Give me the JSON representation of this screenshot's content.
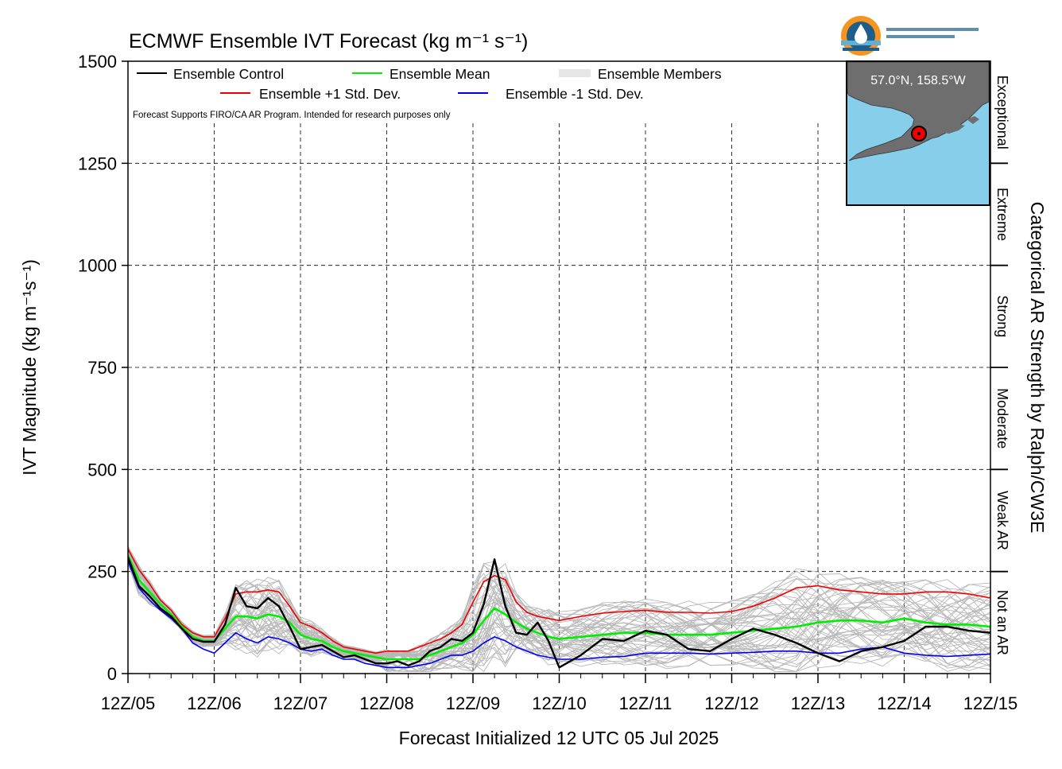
{
  "chart_data": {
    "type": "line",
    "title": "ECMWF Ensemble IVT Forecast (kg m⁻¹ s⁻¹)",
    "xlabel": "Forecast Initialized 12 UTC 05 Jul 2025",
    "ylabel": "IVT Magnitude (kg m⁻¹s⁻¹)",
    "y2label": "Categorical AR Strength by Ralph/CW3E",
    "ylim": [
      0,
      1500
    ],
    "xlim": [
      0,
      240
    ],
    "yticks": [
      0,
      250,
      500,
      750,
      1000,
      1250,
      1500
    ],
    "ytick_labels": [
      "0",
      "250",
      "500",
      "750",
      "1000",
      "1250",
      "1500"
    ],
    "xticks": [
      0,
      24,
      48,
      72,
      96,
      120,
      144,
      168,
      192,
      216,
      240
    ],
    "xtick_labels": [
      "12Z/05",
      "12Z/06",
      "12Z/07",
      "12Z/08",
      "12Z/09",
      "12Z/10",
      "12Z/11",
      "12Z/12",
      "12Z/13",
      "12Z/14",
      "12Z/15"
    ],
    "grid": true,
    "legend": {
      "placement": "top-left",
      "entries": [
        {
          "label": "Ensemble Control",
          "color": "#000000"
        },
        {
          "label": "Ensemble Mean",
          "color": "#00ee00"
        },
        {
          "label": "Ensemble Members",
          "color": "#bbbbbb"
        },
        {
          "label": "Ensemble +1 Std. Dev.",
          "color": "#ee0000"
        },
        {
          "label": "Ensemble -1 Std. Dev.",
          "color": "#0000ee"
        }
      ]
    },
    "disclaimer": "Forecast Supports FIRO/CA AR Program. Intended for research purposes only",
    "categories_right": [
      {
        "label": "Not an AR",
        "range": [
          0,
          250
        ]
      },
      {
        "label": "Weak AR",
        "range": [
          250,
          500
        ]
      },
      {
        "label": "Moderate",
        "range": [
          500,
          750
        ]
      },
      {
        "label": "Strong",
        "range": [
          750,
          1000
        ]
      },
      {
        "label": "Extreme",
        "range": [
          1000,
          1250
        ]
      },
      {
        "label": "Exceptional",
        "range": [
          1250,
          1500
        ]
      }
    ],
    "inset": {
      "location_label": "57.0°N, 158.5°W",
      "marker": {
        "lat": 57.0,
        "lon": -158.5
      }
    },
    "x": [
      0,
      3,
      6,
      9,
      12,
      15,
      18,
      21,
      24,
      27,
      30,
      33,
      36,
      39,
      42,
      45,
      48,
      51,
      54,
      57,
      60,
      63,
      66,
      69,
      72,
      75,
      78,
      81,
      84,
      87,
      90,
      93,
      96,
      99,
      102,
      105,
      108,
      111,
      114,
      117,
      120,
      126,
      132,
      138,
      144,
      150,
      156,
      162,
      168,
      174,
      180,
      186,
      192,
      198,
      204,
      210,
      216,
      222,
      228,
      234,
      240
    ],
    "series": [
      {
        "name": "Ensemble Control",
        "color": "#000000",
        "values": [
          285,
          215,
          190,
          160,
          140,
          110,
          85,
          78,
          78,
          120,
          210,
          165,
          160,
          185,
          165,
          115,
          60,
          65,
          70,
          55,
          40,
          45,
          35,
          25,
          25,
          30,
          20,
          30,
          55,
          65,
          85,
          80,
          100,
          170,
          280,
          165,
          100,
          95,
          125,
          80,
          15,
          45,
          85,
          80,
          105,
          95,
          60,
          55,
          85,
          110,
          95,
          75,
          50,
          30,
          55,
          65,
          80,
          115,
          115,
          105,
          100
        ]
      },
      {
        "name": "Ensemble Mean",
        "color": "#00ee00",
        "values": [
          290,
          230,
          200,
          170,
          145,
          115,
          90,
          80,
          80,
          110,
          140,
          140,
          135,
          145,
          140,
          125,
          95,
          85,
          80,
          65,
          55,
          50,
          45,
          40,
          35,
          35,
          35,
          35,
          45,
          55,
          65,
          75,
          95,
          130,
          160,
          145,
          125,
          110,
          100,
          90,
          85,
          90,
          95,
          100,
          100,
          95,
          95,
          95,
          100,
          105,
          110,
          115,
          125,
          130,
          130,
          125,
          135,
          125,
          120,
          120,
          115
        ]
      },
      {
        "name": "Ensemble +1 Std. Dev.",
        "color": "#ee0000",
        "values": [
          305,
          255,
          220,
          180,
          155,
          120,
          100,
          90,
          90,
          135,
          195,
          200,
          200,
          205,
          200,
          165,
          125,
          115,
          100,
          80,
          65,
          60,
          55,
          50,
          55,
          55,
          55,
          65,
          75,
          85,
          100,
          120,
          175,
          225,
          240,
          230,
          175,
          150,
          140,
          135,
          130,
          140,
          148,
          152,
          155,
          150,
          150,
          148,
          152,
          165,
          185,
          210,
          215,
          205,
          200,
          195,
          195,
          200,
          200,
          195,
          185
        ]
      },
      {
        "name": "Ensemble -1 Std. Dev.",
        "color": "#0000ee",
        "values": [
          275,
          210,
          180,
          155,
          135,
          110,
          75,
          60,
          50,
          75,
          100,
          85,
          75,
          90,
          85,
          75,
          60,
          55,
          60,
          45,
          35,
          35,
          25,
          20,
          15,
          15,
          15,
          20,
          25,
          35,
          45,
          45,
          55,
          75,
          90,
          80,
          65,
          55,
          45,
          40,
          35,
          35,
          40,
          42,
          50,
          50,
          50,
          48,
          50,
          52,
          55,
          55,
          50,
          50,
          60,
          65,
          50,
          45,
          42,
          45,
          48
        ]
      }
    ]
  }
}
